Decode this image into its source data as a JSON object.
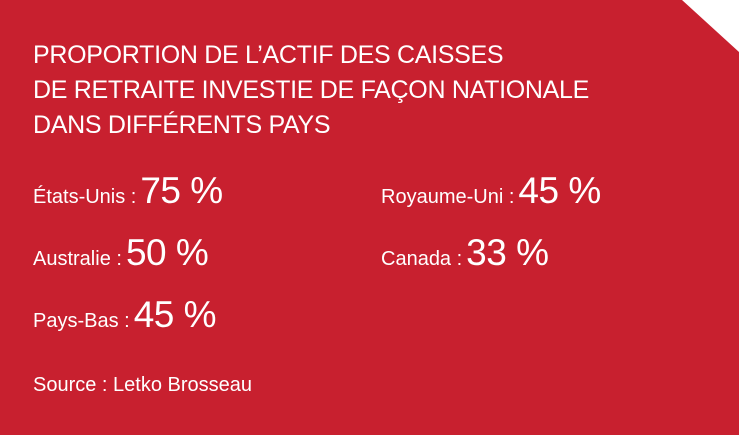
{
  "title": [
    "PROPORTION DE L’ACTIF DES CAISSES",
    "DE RETRAITE INVESTIE DE FAÇON NATIONALE",
    "DANS DIFFÉRENTS PAYS"
  ],
  "items": [
    {
      "label": "États-Unis :",
      "value": "75 %"
    },
    {
      "label": "Royaume-Uni :",
      "value": "45 %"
    },
    {
      "label": "Australie :",
      "value": "50 %"
    },
    {
      "label": "Canada :",
      "value": "33 %"
    },
    {
      "label": "Pays-Bas :",
      "value": "45 %"
    }
  ],
  "source": "Source : Letko Brosseau"
}
